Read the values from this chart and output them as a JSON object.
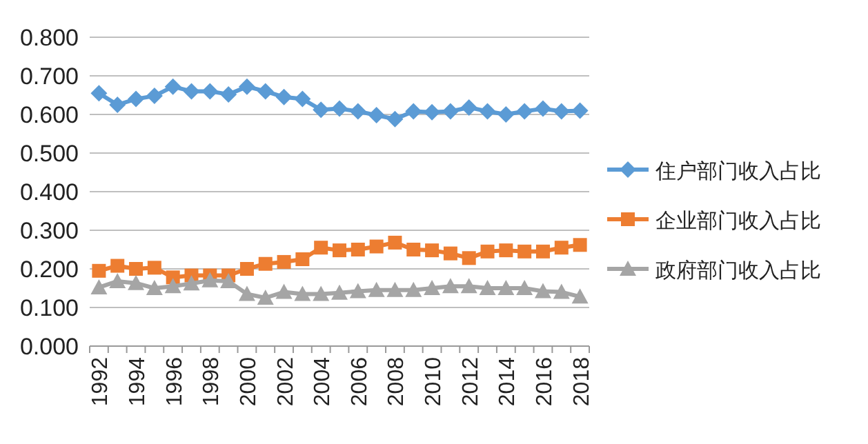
{
  "chart_data": {
    "type": "line",
    "categories": [
      "1992",
      null,
      "1994",
      null,
      "1996",
      null,
      "1998",
      null,
      "2000",
      null,
      "2002",
      null,
      "2004",
      null,
      "2006",
      null,
      "2008",
      null,
      "2010",
      null,
      "2012",
      null,
      "2014",
      null,
      "2016",
      null,
      "2018"
    ],
    "series": [
      {
        "name": "住户部门收入占比",
        "color": "#5b9bd5",
        "marker": "diamond",
        "values": [
          0.655,
          0.625,
          0.64,
          0.648,
          0.672,
          0.66,
          0.66,
          0.652,
          0.672,
          0.66,
          0.645,
          0.64,
          0.612,
          0.615,
          0.608,
          0.598,
          0.588,
          0.608,
          0.606,
          0.608,
          0.618,
          0.608,
          0.6,
          0.608,
          0.615,
          0.608,
          0.61
        ]
      },
      {
        "name": "企业部门收入占比",
        "color": "#ed7d31",
        "marker": "square",
        "values": [
          0.195,
          0.208,
          0.2,
          0.203,
          0.178,
          0.183,
          0.183,
          0.183,
          0.2,
          0.213,
          0.218,
          0.225,
          0.255,
          0.248,
          0.25,
          0.258,
          0.268,
          0.25,
          0.248,
          0.24,
          0.228,
          0.245,
          0.248,
          0.245,
          0.245,
          0.255,
          0.262
        ]
      },
      {
        "name": "政府部门收入占比",
        "color": "#a5a5a5",
        "marker": "triangle",
        "values": [
          0.152,
          0.168,
          0.163,
          0.15,
          0.155,
          0.162,
          0.17,
          0.168,
          0.135,
          0.125,
          0.14,
          0.135,
          0.135,
          0.138,
          0.142,
          0.145,
          0.145,
          0.145,
          0.15,
          0.155,
          0.155,
          0.15,
          0.15,
          0.15,
          0.142,
          0.14,
          0.128
        ]
      }
    ],
    "ylim": [
      0,
      0.8
    ],
    "yticks": [
      {
        "value": 0,
        "label": "0.000"
      },
      {
        "value": 0.1,
        "label": "0.100"
      },
      {
        "value": 0.2,
        "label": "0.200"
      },
      {
        "value": 0.3,
        "label": "0.300"
      },
      {
        "value": 0.4,
        "label": "0.400"
      },
      {
        "value": 0.5,
        "label": "0.500"
      },
      {
        "value": 0.6,
        "label": "0.600"
      },
      {
        "value": 0.7,
        "label": "0.700"
      },
      {
        "value": 0.8,
        "label": "0.800"
      }
    ],
    "grid": "y",
    "legend": "right",
    "line_style": "solid"
  }
}
